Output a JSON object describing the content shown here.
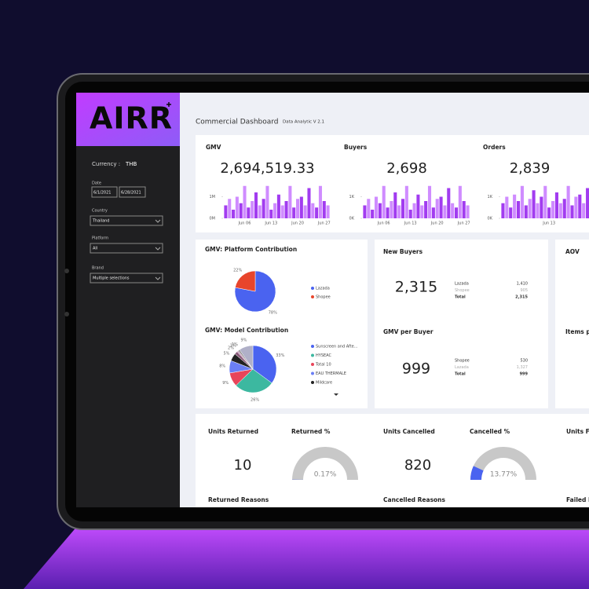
{
  "sidebar": {
    "logo": "AIRR",
    "currency_label": "Currency :",
    "currency": "THB",
    "date_label": "Date",
    "date_from": "6/1/2021",
    "date_to": "6/28/2021",
    "country_label": "Country",
    "country": "Thailand",
    "platform_label": "Platform",
    "platform": "All",
    "brand_label": "Brand",
    "brand": "Multiple selections"
  },
  "header": {
    "title": "Commercial Dashboard",
    "version": "Data Analytic V 2.1"
  },
  "kpis": [
    {
      "title": "GMV",
      "value": "2,694,519.33",
      "chart": {
        "type": "bar",
        "colors": [
          "#a23cf0",
          "#cf8cff"
        ],
        "categories": [
          null,
          null,
          null,
          null,
          null,
          "Jun 06",
          null,
          null,
          null,
          null,
          null,
          null,
          "Jun 13",
          null,
          null,
          null,
          null,
          null,
          null,
          "Jun 20",
          null,
          null,
          null,
          null,
          null,
          null,
          "Jun 27",
          null
        ],
        "values": [
          600000,
          900000,
          400000,
          1000000,
          700000,
          1500000,
          500000,
          800000,
          1200000,
          600000,
          900000,
          1500000,
          400000,
          700000,
          1100000,
          600000,
          800000,
          1500000,
          500000,
          900000,
          1000000,
          600000,
          1400000,
          700000,
          500000,
          1500000,
          800000,
          600000
        ],
        "ylim": [
          0,
          1600000
        ],
        "yticks": [
          {
            "value": 0,
            "label": "0M"
          },
          {
            "value": 1000000,
            "label": "1M"
          }
        ]
      }
    },
    {
      "title": "Buyers",
      "value": "2,698",
      "chart": {
        "type": "bar",
        "colors": [
          "#a23cf0",
          "#cf8cff"
        ],
        "categories": [
          null,
          null,
          null,
          null,
          null,
          "Jun 06",
          null,
          null,
          null,
          null,
          null,
          null,
          "Jun 13",
          null,
          null,
          null,
          null,
          null,
          null,
          "Jun 20",
          null,
          null,
          null,
          null,
          null,
          null,
          "Jun 27",
          null
        ],
        "values": [
          600,
          900,
          400,
          1000,
          700,
          1500,
          500,
          800,
          1200,
          600,
          900,
          1500,
          400,
          700,
          1100,
          600,
          800,
          1500,
          500,
          900,
          1000,
          600,
          1400,
          700,
          500,
          1500,
          800,
          600
        ],
        "ylim": [
          0,
          1600
        ],
        "yticks": [
          {
            "value": 0,
            "label": "0K"
          },
          {
            "value": 1000,
            "label": "1K"
          }
        ]
      }
    },
    {
      "title": "Orders",
      "value": "2,839",
      "chart": {
        "type": "bar",
        "colors": [
          "#a23cf0",
          "#cf8cff"
        ],
        "categories": [
          null,
          null,
          null,
          null,
          null,
          null,
          null,
          null,
          null,
          null,
          null,
          null,
          "Jun 13",
          null,
          null,
          null,
          null,
          null,
          null,
          null,
          null,
          null,
          null,
          null,
          null,
          null,
          null,
          null
        ],
        "values": [
          700,
          1000,
          500,
          1100,
          800,
          1500,
          600,
          900,
          1300,
          700,
          1000,
          1500,
          500,
          800,
          1200,
          700,
          900,
          1500,
          600,
          1000,
          1100,
          700,
          1400,
          800,
          600,
          1500,
          900,
          700
        ],
        "ylim": [
          0,
          1600
        ],
        "yticks": [
          {
            "value": 0,
            "label": "0K"
          },
          {
            "value": 1000,
            "label": "1K"
          }
        ]
      }
    }
  ],
  "platform_contribution": {
    "title": "GMV: Platform Contribution",
    "chart": {
      "type": "pie",
      "categories": [
        "Lazada",
        "Shopee"
      ],
      "values": [
        78,
        22
      ],
      "value_labels": [
        "78%",
        "22%"
      ],
      "colors": [
        "#4a63f0",
        "#e8452c"
      ]
    }
  },
  "model_contribution": {
    "title": "GMV: Model Contribution",
    "chart": {
      "type": "pie",
      "categories": [
        "Sunscreen and Afte...",
        "HYSEAC",
        "Total 10",
        "EAU THERMALE",
        "Mildcare",
        null,
        null,
        null,
        null
      ],
      "values": [
        33,
        26,
        9,
        8,
        5,
        2,
        1,
        1,
        9
      ],
      "value_labels": [
        "33%",
        "26%",
        "9%",
        "8%",
        "5%",
        "2%",
        "1%",
        "1%",
        "9%"
      ],
      "colors": [
        "#4a63f0",
        "#3cb8a0",
        "#e8455a",
        "#6b7ff5",
        "#222222",
        "#8a5a7a",
        "#c9a0c0",
        "#888888",
        "#b0b0c8"
      ]
    }
  },
  "new_buyers": {
    "title": "New Buyers",
    "value": "2,315",
    "rows": [
      [
        "Lazada",
        "1,410"
      ],
      [
        "Shopee",
        "905"
      ],
      [
        "Total",
        "2,315"
      ]
    ]
  },
  "gmv_per_buyer": {
    "title": "GMV per Buyer",
    "value": "999",
    "rows": [
      [
        "Shopee",
        "530"
      ],
      [
        "Lazada",
        "1,327"
      ],
      [
        "Total",
        "999"
      ]
    ]
  },
  "aov": {
    "title": "AOV",
    "subtitle": "Items p"
  },
  "returns": {
    "units_title": "Units Returned",
    "units": "10",
    "pct_title": "Returned %",
    "gauge": {
      "value": 0.17,
      "label": "0.17%",
      "ylim": [
        0,
        100
      ],
      "color": "#4a63f0"
    },
    "reasons_title": "Returned Reasons"
  },
  "cancellations": {
    "units_title": "Units Cancelled",
    "units": "820",
    "pct_title": "Cancelled %",
    "gauge": {
      "value": 13.77,
      "label": "13.77%",
      "ylim": [
        0,
        100
      ],
      "color": "#4a63f0"
    },
    "reasons_title": "Cancelled Reasons"
  },
  "failed": {
    "units_title": "Units F",
    "reasons_title": "Failed R"
  }
}
